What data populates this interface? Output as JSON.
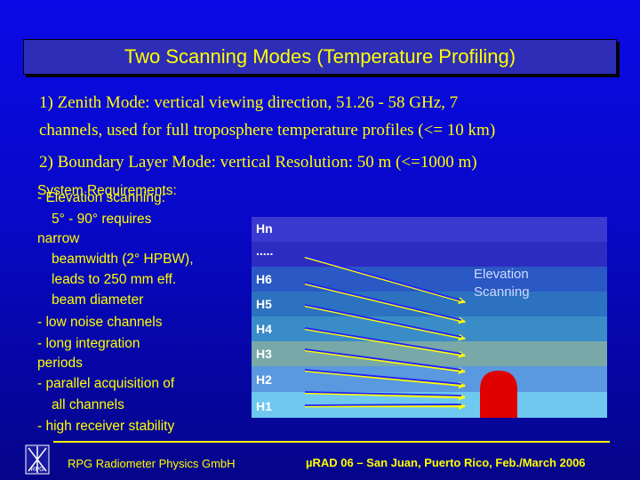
{
  "title": "Two Scanning Modes (Temperature Profiling)",
  "intro": {
    "line1": "1) Zenith Mode: vertical viewing direction, 51.26 - 58 GHz, 7",
    "line2": "channels, used for full troposphere temperature profiles (<= 10 km)",
    "line3": "2) Boundary Layer Mode: vertical Resolution: 50 m (<=1000 m)"
  },
  "requirements": {
    "heading": "System Requirements:",
    "overlap": "- Elevation scanning:",
    "lines": [
      "5° - 90° requires",
      "narrow",
      "beamwidth (2° HPBW),",
      "leads to 250 mm eff.",
      "beam diameter",
      "- low noise channels",
      "- long integration",
      "periods",
      "- parallel acquisition of",
      "all channels",
      "- high receiver stability"
    ]
  },
  "diagram": {
    "labels": [
      "Hn",
      ".....",
      "H6",
      "H5",
      "H4",
      "H3",
      "H2",
      "H1"
    ],
    "elevation_label_1": "Elevation",
    "elevation_label_2": "Scanning",
    "colors": {
      "band_top": "#3a3ad0",
      "band_2": "#2c2cc0",
      "band_3": "#2a58c4",
      "band_4": "#2c72c0",
      "band_5": "#3a8cc8",
      "band_6": "#78a8a8",
      "band_7": "#5a98e0",
      "band_8": "#6ec8f0",
      "arrow": "#ffff00",
      "dome": "#e00000"
    }
  },
  "footer": {
    "left": "RPG Radiometer Physics GmbH",
    "right": "µRAD 06 – San Juan, Puerto Rico, Feb./March 2006",
    "logo_text": "RPG"
  }
}
